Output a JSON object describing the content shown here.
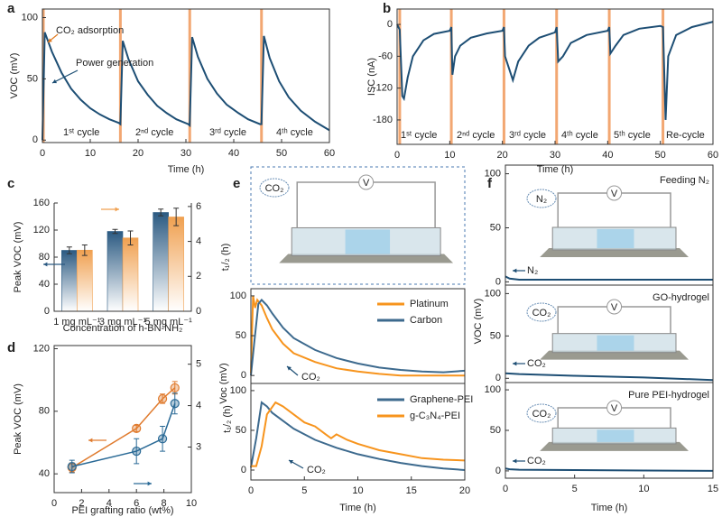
{
  "chart_data": [
    {
      "panel": "a",
      "type": "line",
      "xlabel": "Time (h)",
      "ylabel": "VOC (mV)",
      "xlim": [
        0,
        60
      ],
      "ylim": [
        -2,
        107
      ],
      "xticks": [
        0,
        10,
        20,
        30,
        40,
        50,
        60
      ],
      "yticks": [
        0,
        50,
        100
      ],
      "markers_x": [
        0.2,
        16.3,
        30.8,
        45.8
      ],
      "marker_color": "#f2a772",
      "annotations": [
        "CO₂ adsorption",
        "Power generation",
        "1ˢᵗ cycle",
        "2ⁿᵈ cycle",
        "3ʳᵈ cycle",
        "4ᵗʰ cycle"
      ],
      "series": [
        {
          "color": "#1d4e74",
          "x": [
            0,
            0.5,
            2,
            4,
            6,
            8,
            10,
            12,
            14,
            16,
            16.3,
            16.8,
            18,
            20,
            22,
            24,
            26,
            28,
            30.5,
            30.8,
            31.3,
            32.5,
            34.5,
            36.5,
            38.5,
            41,
            43,
            45.5,
            45.8,
            46.3,
            47.5,
            49.5,
            51.5,
            54,
            57,
            60
          ],
          "values": [
            0,
            88,
            72,
            55,
            42,
            33,
            26,
            21,
            17,
            14,
            13,
            81,
            66,
            48,
            37,
            28,
            22,
            17,
            13,
            12,
            84,
            68,
            50,
            38,
            29,
            22,
            17,
            13,
            13,
            85,
            67,
            48,
            35,
            24,
            15,
            8
          ]
        }
      ]
    },
    {
      "panel": "b",
      "type": "line",
      "xlabel": "Time (h)",
      "ylabel": "ISC (nA)",
      "xlim": [
        0,
        60
      ],
      "ylim": [
        -226,
        29
      ],
      "xticks": [
        0,
        10,
        20,
        30,
        40,
        50,
        60
      ],
      "yticks": [
        -180,
        -120,
        -60,
        0
      ],
      "markers_x": [
        0.5,
        10.3,
        20.3,
        30.3,
        40.3,
        50.5
      ],
      "marker_color": "#f2a772",
      "annotations": [
        "1ˢᵗ cycle",
        "2ⁿᵈ cycle",
        "3ʳᵈ cycle",
        "4ᵗʰ cycle",
        "5ᵗʰ cycle",
        "Re-cycle"
      ],
      "series": [
        {
          "color": "#1d4e74",
          "x": [
            0,
            0.5,
            1,
            1.3,
            2,
            3,
            5,
            7,
            10,
            10.3,
            10.5,
            11,
            12,
            14,
            17,
            20,
            20.3,
            20.5,
            22,
            23,
            25,
            27,
            30,
            30.3,
            30.6,
            31.5,
            33,
            36,
            40,
            40.3,
            40.5,
            41.5,
            43,
            46,
            50,
            50.5,
            51,
            51.5,
            53,
            56,
            60
          ],
          "values": [
            0,
            -10,
            -135,
            -140,
            -100,
            -60,
            -30,
            -18,
            -12,
            -5,
            -95,
            -60,
            -40,
            -25,
            -17,
            -12,
            -5,
            -60,
            -105,
            -70,
            -40,
            -25,
            -15,
            -5,
            -70,
            -60,
            -35,
            -20,
            -12,
            -5,
            -55,
            -40,
            -20,
            -8,
            -3,
            -5,
            -180,
            -60,
            -20,
            -5,
            5
          ]
        }
      ]
    },
    {
      "panel": "c",
      "type": "bar",
      "xlabel": "Concentration of h-BN-NH₂",
      "ylabel": "Peak VOC (mV)",
      "y2label": "t₁/₂ (h)",
      "categories": [
        "1 mg mL⁻¹",
        "3 mg mL⁻¹",
        "5 mg mL⁻¹"
      ],
      "ylim": [
        0,
        160
      ],
      "yticks": [
        0,
        40,
        80,
        120,
        160
      ],
      "y2lim": [
        0,
        6.2
      ],
      "y2ticks": [
        0,
        2,
        4,
        6
      ],
      "series": [
        {
          "color": "#2b5a82",
          "values": [
            90,
            118,
            146
          ],
          "errors": [
            5,
            3,
            5
          ]
        },
        {
          "color": "#f0a050",
          "axis": "y2",
          "values": [
            3.5,
            4.2,
            5.4
          ],
          "errors": [
            0.3,
            0.4,
            0.5
          ]
        }
      ]
    },
    {
      "panel": "d",
      "type": "line",
      "markers": true,
      "xlabel": "PEI grafting ratio (wt%)",
      "ylabel": "Peak VOC (mV)",
      "y2label": "t₁/₂ (h)",
      "x": [
        1.3,
        6,
        7.9,
        8.8
      ],
      "xlim": [
        0,
        10
      ],
      "xticks": [
        0,
        2,
        4,
        6,
        8,
        10
      ],
      "ylim": [
        28,
        122
      ],
      "yticks": [
        40,
        80,
        120
      ],
      "y2lim": [
        1.9,
        5.45
      ],
      "y2ticks": [
        3,
        4,
        5
      ],
      "series": [
        {
          "color": "#e07b2e",
          "values": [
            44,
            69,
            88,
            95
          ],
          "errors": [
            3,
            2,
            3,
            4
          ]
        },
        {
          "color": "#2a6a96",
          "axis": "y2",
          "values": [
            2.53,
            2.9,
            3.2,
            4.05
          ],
          "errors": [
            0.15,
            0.3,
            0.3,
            0.25
          ]
        }
      ]
    },
    {
      "panel": "e",
      "type": "line",
      "xlim": [
        0,
        20
      ],
      "ylim": [
        -10,
        109
      ],
      "yticks": [
        0,
        50,
        100
      ],
      "legend": "upper right",
      "annotations": [
        "CO₂"
      ],
      "series": [
        {
          "name": "Platinum",
          "color": "#f7941d",
          "x": [
            0,
            0.2,
            0.4,
            0.6,
            1,
            1.5,
            2,
            3,
            4,
            6,
            8,
            10,
            12,
            14,
            16,
            18,
            20
          ],
          "values": [
            3,
            100,
            85,
            95,
            88,
            72,
            58,
            40,
            28,
            17,
            9,
            5,
            2,
            0,
            0,
            0,
            0
          ]
        },
        {
          "name": "Carbon",
          "color": "#3d6a8e",
          "x": [
            0,
            0.3,
            0.7,
            1,
            1.5,
            2,
            3,
            4,
            6,
            8,
            10,
            12,
            14,
            16,
            18,
            20
          ],
          "values": [
            0,
            40,
            90,
            95,
            88,
            78,
            60,
            47,
            32,
            22,
            15,
            10,
            7,
            5,
            4,
            6
          ]
        }
      ]
    },
    {
      "type": "line",
      "xlabel": "Time (h)",
      "ylabel": "Voc (mV)",
      "xlim": [
        0,
        20
      ],
      "ylim": [
        -12.5,
        109
      ],
      "xticks": [
        0,
        5,
        10,
        15,
        20
      ],
      "yticks": [
        0,
        50,
        100
      ],
      "legend": "upper right",
      "annotations": [
        "CO₂"
      ],
      "series": [
        {
          "name": "Graphene-PEI",
          "color": "#3d6a8e",
          "x": [
            0,
            0.5,
            1,
            1.5,
            2,
            3,
            4,
            6,
            8,
            10,
            12,
            14,
            16,
            18,
            20
          ],
          "values": [
            3,
            40,
            85,
            80,
            72,
            62,
            52,
            38,
            28,
            20,
            14,
            9,
            5,
            2,
            0
          ]
        },
        {
          "name": "g-C₃N₄-PEI",
          "color": "#f7941d",
          "x": [
            0,
            0.5,
            1,
            1.5,
            2.3,
            3,
            4,
            5,
            6,
            7,
            7.5,
            8,
            9,
            10,
            12,
            14,
            16,
            18,
            20
          ],
          "values": [
            5,
            5,
            30,
            70,
            85,
            80,
            70,
            60,
            55,
            45,
            40,
            45,
            38,
            33,
            25,
            20,
            15,
            13,
            12
          ]
        }
      ]
    },
    {
      "panel": "f",
      "type": "line",
      "title": "Feeding N₂",
      "xlim": [
        0,
        15
      ],
      "ylim": [
        -3,
        108
      ],
      "yticks": [
        0,
        50,
        100
      ],
      "annotations": [
        "N₂"
      ],
      "series": [
        {
          "color": "#1d4e74",
          "x": [
            0,
            0.3,
            1,
            5,
            10,
            15
          ],
          "values": [
            5,
            3,
            2,
            2,
            2,
            2
          ]
        }
      ]
    },
    {
      "type": "line",
      "title": "GO-hydrogel",
      "ylabel": "VOC (mV)",
      "xlim": [
        0,
        15
      ],
      "ylim": [
        -5,
        110
      ],
      "yticks": [
        0,
        50,
        100
      ],
      "annotations": [
        "CO₂"
      ],
      "series": [
        {
          "color": "#1d4e74",
          "x": [
            0,
            1,
            5,
            10,
            15
          ],
          "values": [
            6,
            5,
            3,
            1,
            -2
          ]
        }
      ]
    },
    {
      "type": "line",
      "title": "Pure PEI-hydrogel",
      "xlabel": "Time (h)",
      "xlim": [
        0,
        15
      ],
      "ylim": [
        -9,
        109
      ],
      "xticks": [
        0,
        5,
        10,
        15
      ],
      "yticks": [
        0,
        50,
        100
      ],
      "annotations": [
        "CO₂"
      ],
      "series": [
        {
          "color": "#1d4e74",
          "x": [
            0,
            0.3,
            1,
            5,
            10,
            15
          ],
          "values": [
            3,
            2,
            1.5,
            1,
            0.5,
            0
          ]
        }
      ]
    }
  ],
  "diagrams": [
    {
      "gas": "CO₂",
      "meter": "V"
    },
    {
      "gas": "N₂",
      "meter": "V"
    },
    {
      "gas": "CO₂",
      "meter": "V"
    },
    {
      "gas": "CO₂",
      "meter": "V"
    }
  ]
}
